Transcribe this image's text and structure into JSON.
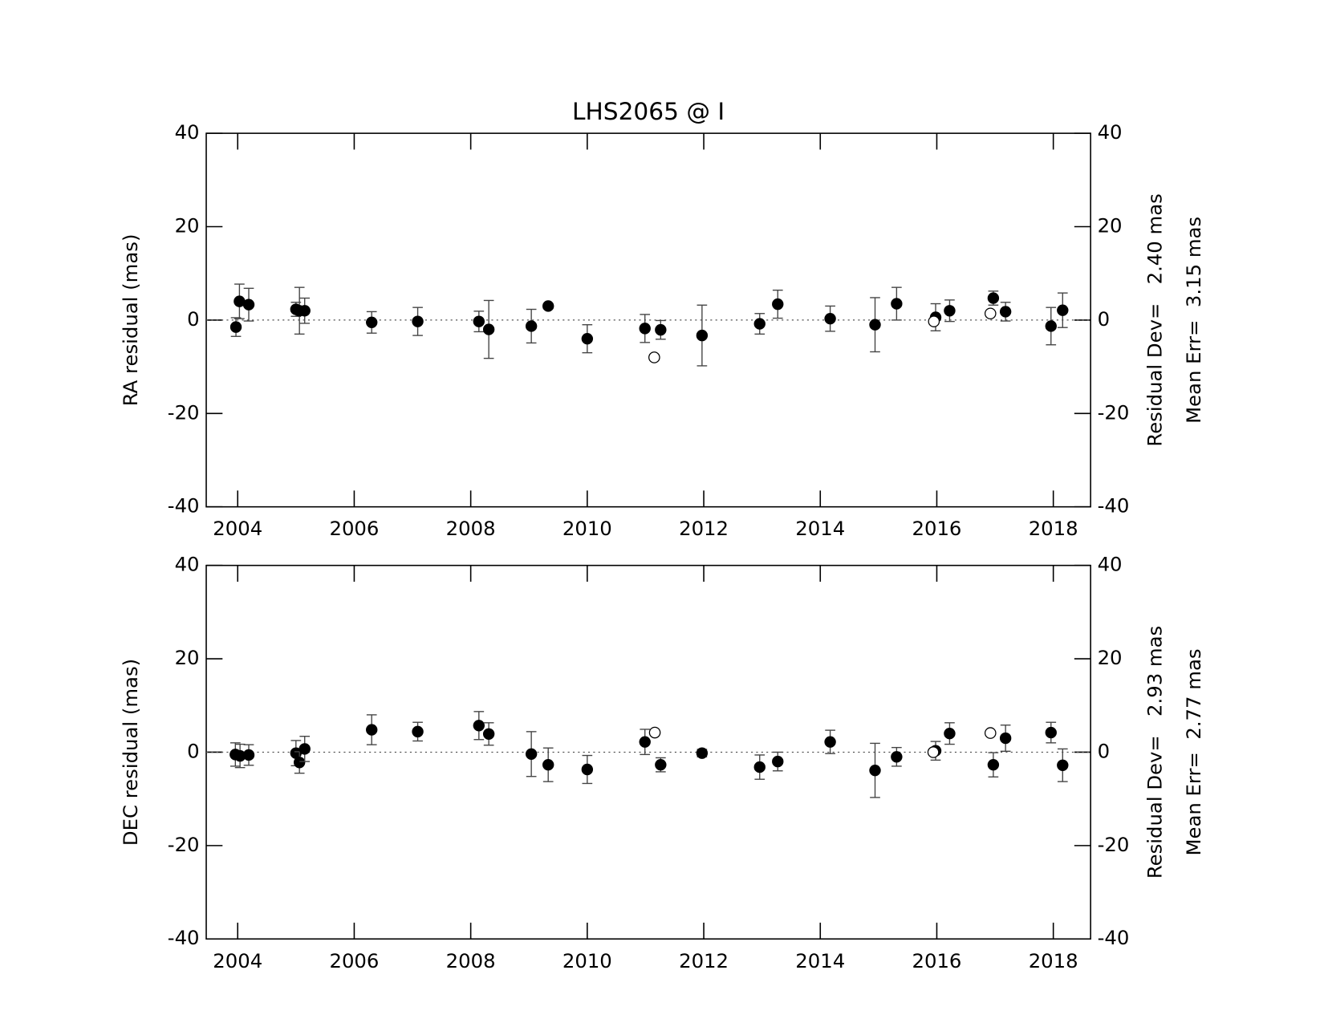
{
  "chart_data": [
    {
      "type": "scatter",
      "title": "LHS2065 @ I",
      "ylabel": "RA residual (mas)",
      "annotations": [
        "Residual Dev=   2.40 mas",
        "Mean Err=  3.15 mas"
      ],
      "xlim": [
        2003.46,
        2018.64
      ],
      "xticks": [
        2004,
        2006,
        2008,
        2010,
        2012,
        2014,
        2016,
        2018
      ],
      "ylim": [
        -40,
        40
      ],
      "yticks": [
        -40,
        -20,
        0,
        20,
        40
      ],
      "zero_line": true,
      "series": [
        {
          "marker": "filled",
          "color": "#000000",
          "x": [
            2003.97,
            2004.03,
            2004.19,
            2005.0,
            2005.06,
            2005.15,
            2006.3,
            2007.09,
            2008.14,
            2008.31,
            2009.04,
            2009.33,
            2010.0,
            2010.99,
            2011.26,
            2011.97,
            2012.96,
            2013.27,
            2014.17,
            2014.94,
            2015.31,
            2015.98,
            2016.22,
            2016.97,
            2017.18,
            2017.96,
            2018.16
          ],
          "values": [
            -1.5,
            4,
            3.3,
            2.3,
            2.0,
            2.0,
            -0.5,
            -0.3,
            -0.3,
            -2.0,
            -1.3,
            3.0,
            -4.0,
            -1.8,
            -2.1,
            -3.3,
            -0.8,
            3.4,
            0.3,
            -1.0,
            3.5,
            0.6,
            2.0,
            4.7,
            1.8,
            -1.3,
            2.1
          ],
          "errors": [
            2,
            3.7,
            3.5,
            1.5,
            5,
            2.7,
            2.3,
            3,
            2.2,
            6.2,
            3.6,
            0.5,
            3,
            3,
            2,
            6.5,
            2.2,
            3,
            2.7,
            5.8,
            3.5,
            2.9,
            2.3,
            1.5,
            2,
            4,
            3.7
          ]
        },
        {
          "marker": "open",
          "color": "#000000",
          "x": [
            2011.15,
            2015.95,
            2016.92
          ],
          "values": [
            -8,
            -0.3,
            1.4
          ]
        }
      ]
    },
    {
      "type": "scatter",
      "ylabel": "DEC residual (mas)",
      "annotations": [
        "Residual Dev=   2.93 mas",
        "Mean Err=  2.77 mas"
      ],
      "xlim": [
        2003.46,
        2018.64
      ],
      "xticks": [
        2004,
        2006,
        2008,
        2010,
        2012,
        2014,
        2016,
        2018
      ],
      "ylim": [
        -40,
        40
      ],
      "yticks": [
        -40,
        -20,
        0,
        20,
        40
      ],
      "zero_line": true,
      "series": [
        {
          "marker": "filled",
          "color": "#000000",
          "x": [
            2003.96,
            2004.04,
            2004.19,
            2005.0,
            2005.06,
            2005.15,
            2006.3,
            2007.09,
            2008.14,
            2008.31,
            2009.04,
            2009.33,
            2010.0,
            2010.99,
            2011.26,
            2011.97,
            2012.96,
            2013.27,
            2014.17,
            2014.94,
            2015.31,
            2015.98,
            2016.22,
            2016.97,
            2017.18,
            2017.96,
            2018.16
          ],
          "values": [
            -0.5,
            -0.8,
            -0.6,
            -0.2,
            -2.2,
            0.7,
            4.8,
            4.4,
            5.7,
            3.9,
            -0.4,
            -2.7,
            -3.7,
            2.2,
            -2.7,
            -0.2,
            -3.2,
            -2.0,
            2.2,
            -3.9,
            -1.0,
            0.3,
            4.0,
            -2.7,
            3.0,
            4.2,
            -2.8
          ],
          "errors": [
            2.5,
            2.5,
            2.2,
            2.7,
            2.3,
            2.7,
            3.2,
            2,
            3,
            2.4,
            4.8,
            3.6,
            3,
            2.7,
            1.5,
            0.8,
            2.6,
            2,
            2.5,
            5.8,
            2,
            2,
            2.3,
            2.6,
            2.8,
            2.2,
            3.5
          ]
        },
        {
          "marker": "open",
          "color": "#000000",
          "x": [
            2011.16,
            2015.94,
            2016.92
          ],
          "values": [
            4.2,
            0,
            4.1
          ]
        }
      ]
    }
  ]
}
